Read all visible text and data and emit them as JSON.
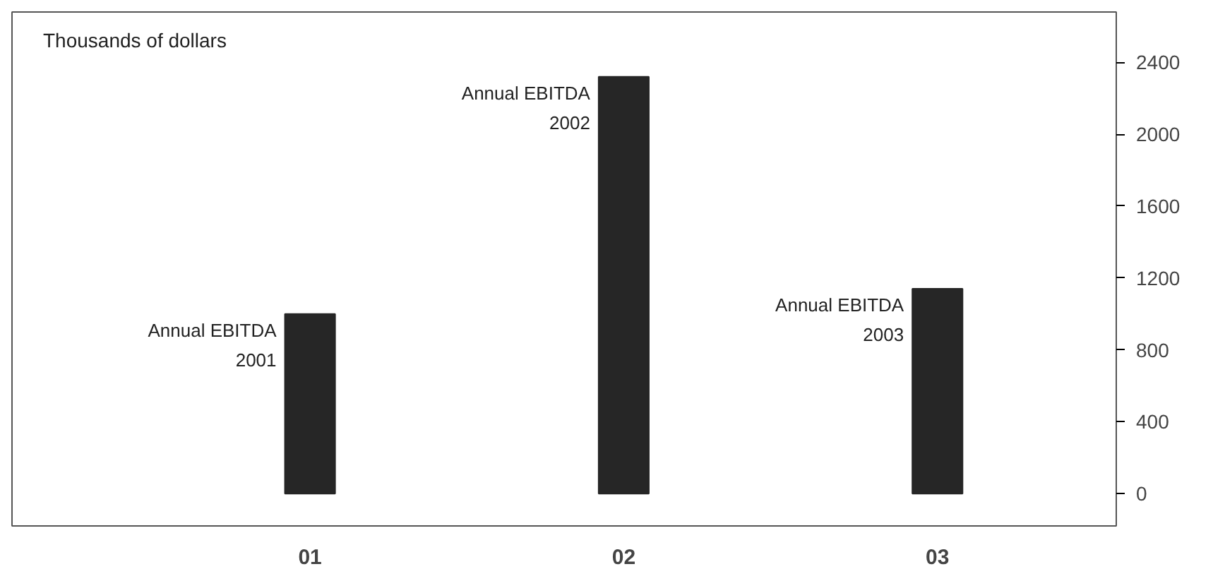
{
  "chart_data": {
    "type": "bar",
    "ylabel": "Thousands of dollars",
    "categories": [
      "01",
      "02",
      "03"
    ],
    "values": [
      1000,
      2320,
      1140
    ],
    "color": "#262626",
    "ylim": [
      -180,
      2680
    ],
    "yticks": [
      0,
      400,
      800,
      1200,
      1600,
      2000,
      2400
    ],
    "grid": false,
    "annotations": [
      {
        "text": "Annual EBITDA\n2001",
        "x": "01",
        "y": 1000
      },
      {
        "text": "Annual EBITDA\n2002",
        "x": "02",
        "y": 2320
      },
      {
        "text": "Annual EBITDA\n2003",
        "x": "03",
        "y": 1140
      }
    ]
  }
}
